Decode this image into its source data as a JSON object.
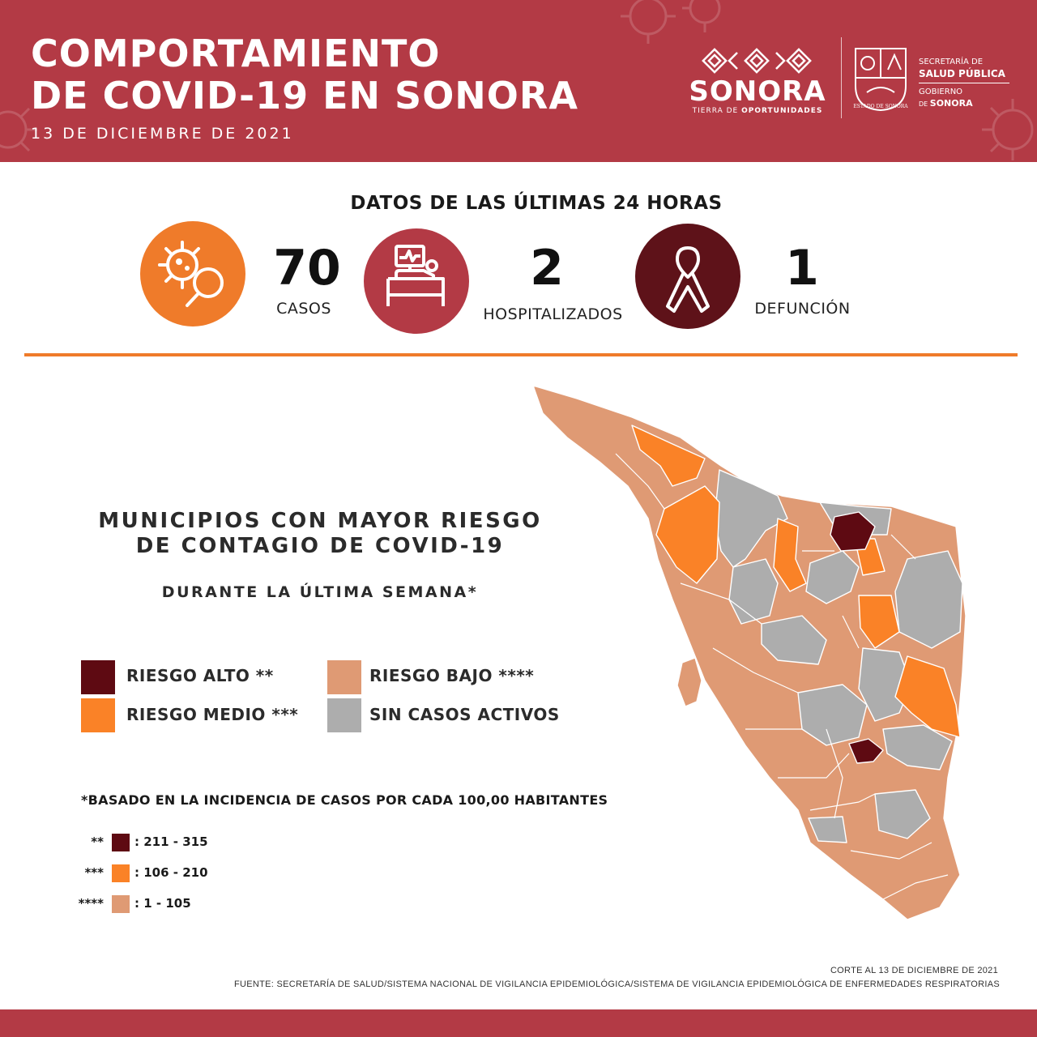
{
  "header": {
    "title_line1": "COMPORTAMIENTO",
    "title_line2": "DE COVID-19 EN SONORA",
    "date": "13 DE DICIEMBRE DE 2021",
    "logo_word": "SONORA",
    "logo_tag_a": "TIERRA DE ",
    "logo_tag_b": "OPORTUNIDADES",
    "secretaria_line1": "SECRETARÍA DE",
    "secretaria_line2": "SALUD PÚBLICA",
    "gobierno_line1": "GOBIERNO",
    "gobierno_line2_prefix": "DE ",
    "gobierno_line2": "SONORA",
    "shield_text": "ESTADO DE SONORA"
  },
  "stats": {
    "title": "DATOS DE LAS ÚLTIMAS 24 HORAS",
    "items": [
      {
        "value": "70",
        "label": "CASOS",
        "icon": "virus-search-icon",
        "color": "#ef7b2a"
      },
      {
        "value": "2",
        "label": "HOSPITALIZADOS",
        "icon": "hospital-bed-icon",
        "color": "#b33a45"
      },
      {
        "value": "1",
        "label": "DEFUNCIÓN",
        "icon": "ribbon-icon",
        "color": "#5e1219"
      }
    ]
  },
  "map_section": {
    "title_line1": "MUNICIPIOS CON MAYOR RIESGO",
    "title_line2": "DE CONTAGIO DE COVID-19",
    "subtitle": "DURANTE LA ÚLTIMA SEMANA*",
    "legend": [
      {
        "label": "RIESGO ALTO **",
        "color": "#5e0a12"
      },
      {
        "label": "RIESGO BAJO ****",
        "color": "#df9a74"
      },
      {
        "label": "RIESGO MEDIO ***",
        "color": "#fa8227"
      },
      {
        "label": "SIN CASOS ACTIVOS",
        "color": "#adadad"
      }
    ],
    "note": "*BASADO EN LA INCIDENCIA DE CASOS POR CADA 100,00 HABITANTES",
    "ranges": [
      {
        "stars": "**",
        "range": ": 211 - 315",
        "color": "#5e0a12"
      },
      {
        "stars": "***",
        "range": ": 106 - 210",
        "color": "#fa8227"
      },
      {
        "stars": "****",
        "range": ": 1 - 105",
        "color": "#df9a74"
      }
    ]
  },
  "footer": {
    "corte": "CORTE AL 13 DE DICIEMBRE DE 2021",
    "fuente": "FUENTE: SECRETARÍA DE SALUD/SISTEMA NACIONAL DE VIGILANCIA EPIDEMIOLÓGICA/SISTEMA DE VIGILANCIA EPIDEMIOLÓGICA DE ENFERMEDADES RESPIRATORIAS"
  },
  "colors": {
    "brand": "#b33a45",
    "accent": "#ef7b2a",
    "high": "#5e0a12",
    "medium": "#fa8227",
    "low": "#df9a74",
    "none": "#adadad"
  }
}
